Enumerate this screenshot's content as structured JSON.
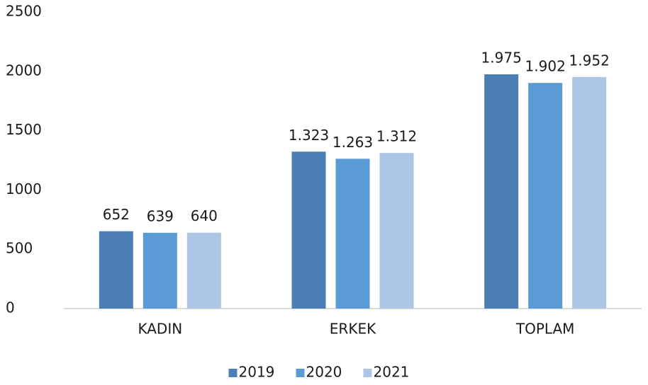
{
  "chart_data": {
    "type": "bar",
    "categories": [
      "KADIN",
      "ERKEK",
      "TOPLAM"
    ],
    "series": [
      {
        "name": "2019",
        "color": "#4a7eb4",
        "values": [
          652,
          1323,
          1975
        ],
        "value_labels": [
          "652",
          "1.323",
          "1.975"
        ]
      },
      {
        "name": "2020",
        "color": "#5b9bd5",
        "values": [
          639,
          1263,
          1902
        ],
        "value_labels": [
          "639",
          "1.263",
          "1.902"
        ]
      },
      {
        "name": "2021",
        "color": "#adc6e6",
        "values": [
          640,
          1312,
          1952
        ],
        "value_labels": [
          "640",
          "1.312",
          "1.952"
        ]
      }
    ],
    "ylim": [
      0,
      2500
    ],
    "yticks": [
      0,
      500,
      1000,
      1500,
      2000,
      2500
    ],
    "grid": false,
    "legend": "bottom"
  }
}
